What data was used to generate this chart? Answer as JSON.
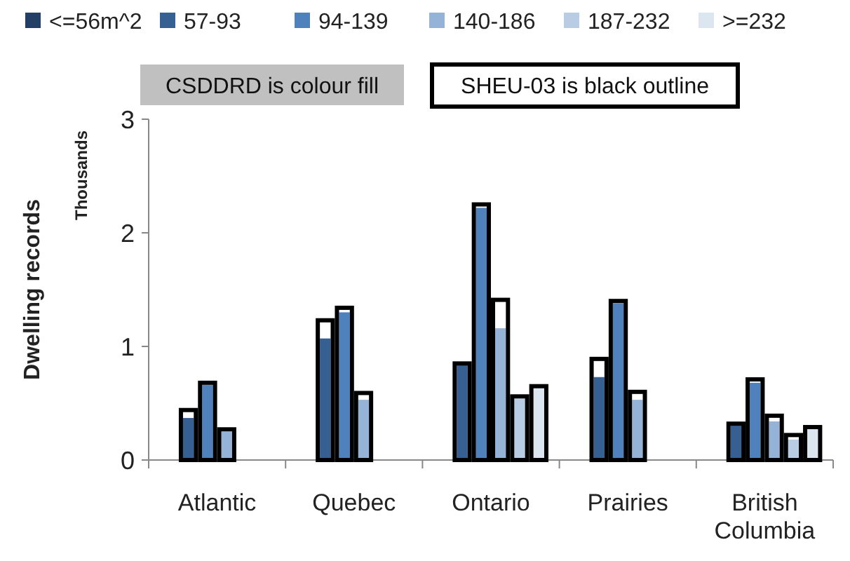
{
  "chart_data": {
    "type": "bar",
    "ylabel": "Dwelling records",
    "annotations": [
      "Thousands",
      "CSDDRD is colour fill",
      "SHEU-03 is black outline"
    ],
    "categories": [
      "Atlantic",
      "Quebec",
      "Ontario",
      "Prairies",
      "British Columbia"
    ],
    "series": [
      {
        "name": "<=56m^2",
        "color": "#243f66",
        "values": [
          null,
          null,
          null,
          null,
          null
        ]
      },
      {
        "name": "57-93",
        "color": "#366092",
        "values": [
          0.37,
          1.07,
          0.85,
          0.73,
          0.31
        ]
      },
      {
        "name": "94-139",
        "color": "#4f81bd",
        "values": [
          0.66,
          1.3,
          2.22,
          1.38,
          0.68
        ]
      },
      {
        "name": "140-186",
        "color": "#95b3d7",
        "values": [
          0.25,
          0.53,
          1.16,
          0.53,
          0.34
        ]
      },
      {
        "name": "187-232",
        "color": "#b8cce4",
        "values": [
          null,
          null,
          0.54,
          null,
          0.18
        ]
      },
      {
        "name": ">=232",
        "color": "#dce6f1",
        "values": [
          null,
          null,
          0.64,
          null,
          0.28
        ]
      },
      {
        "color": "#000000",
        "values": [
          0.44,
          1.23,
          0.85,
          0.89,
          0.32
        ]
      },
      {
        "color": "#000000",
        "values": [
          0.68,
          1.34,
          2.25,
          1.4,
          0.71
        ]
      },
      {
        "color": "#000000",
        "values": [
          0.27,
          0.59,
          1.41,
          0.6,
          0.39
        ]
      },
      {
        "color": "#000000",
        "values": [
          null,
          null,
          0.56,
          null,
          0.22
        ]
      },
      {
        "color": "#000000",
        "values": [
          null,
          null,
          0.65,
          null,
          0.29
        ]
      }
    ],
    "ylim": [
      0,
      3
    ],
    "yticks": [
      0,
      1,
      2,
      3
    ],
    "grid": false,
    "legend": "top"
  }
}
